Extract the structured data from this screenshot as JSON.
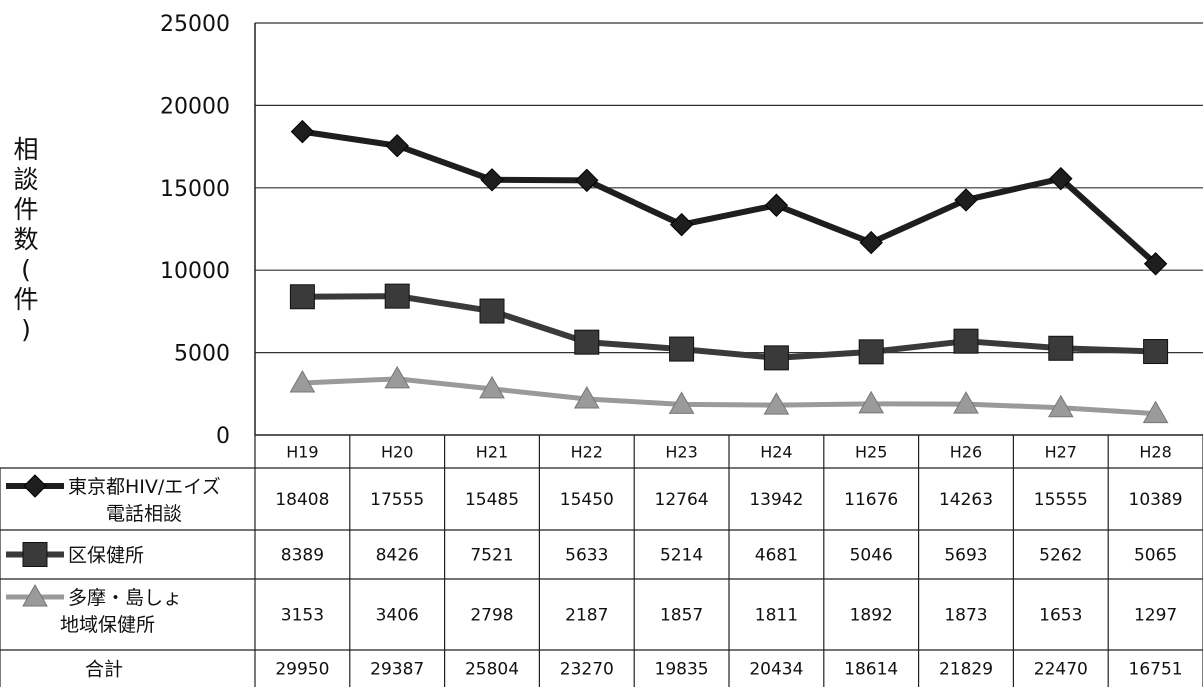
{
  "chart_data": {
    "type": "line",
    "ylabel_chars": [
      "相",
      "談",
      "件",
      "数",
      "(",
      "件",
      ")"
    ],
    "ylim": [
      0,
      25000
    ],
    "yticks": [
      "0",
      "5000",
      "10000",
      "15000",
      "20000",
      "25000"
    ],
    "ytick_values": [
      0,
      5000,
      10000,
      15000,
      20000,
      25000
    ],
    "grid": true,
    "categories": [
      "H19",
      "H20",
      "H21",
      "H22",
      "H23",
      "H24",
      "H25",
      "H26",
      "H27",
      "H28"
    ],
    "series": [
      {
        "name_lines": [
          "東京都HIV/エイズ",
          "電話相談"
        ],
        "marker": "diamond",
        "color": "#1e1e1e",
        "values": [
          18408,
          17555,
          15485,
          15450,
          12764,
          13942,
          11676,
          14263,
          15555,
          10389
        ],
        "labels": [
          "18408",
          "17555",
          "15485",
          "15450",
          "12764",
          "13942",
          "11676",
          "14263",
          "15555",
          "10389"
        ]
      },
      {
        "name_lines": [
          "区保健所"
        ],
        "marker": "square",
        "color": "#3a3a3a",
        "values": [
          8389,
          8426,
          7521,
          5633,
          5214,
          4681,
          5046,
          5693,
          5262,
          5065
        ],
        "labels": [
          "8389",
          "8426",
          "7521",
          "5633",
          "5214",
          "4681",
          "5046",
          "5693",
          "5262",
          "5065"
        ]
      },
      {
        "name_lines": [
          "多摩・島しょ",
          "地域保健所"
        ],
        "marker": "triangle",
        "color": "#9a9a9a",
        "values": [
          3153,
          3406,
          2798,
          2187,
          1857,
          1811,
          1892,
          1873,
          1653,
          1297
        ],
        "labels": [
          "3153",
          "3406",
          "2798",
          "2187",
          "1857",
          "1811",
          "1892",
          "1873",
          "1653",
          "1297"
        ]
      }
    ],
    "total": {
      "name": "合計",
      "labels": [
        "29950",
        "29387",
        "25804",
        "23270",
        "19835",
        "20434",
        "18614",
        "21829",
        "22470",
        "16751"
      ]
    }
  }
}
